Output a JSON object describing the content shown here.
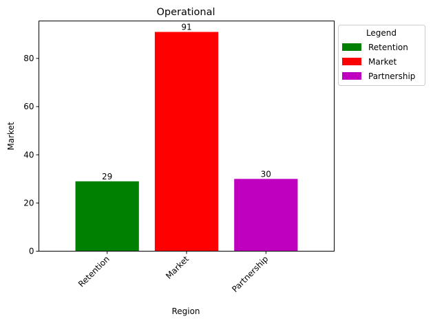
{
  "chart_data": {
    "type": "bar",
    "title": "Operational",
    "xlabel": "Region",
    "ylabel": "Market",
    "categories": [
      "Retention",
      "Market",
      "Partnership"
    ],
    "values": [
      29,
      91,
      30
    ],
    "colors": [
      "#008000",
      "#ff0000",
      "#bf00bf"
    ],
    "ylim": [
      0,
      95.55
    ],
    "yticks": [
      0,
      20,
      40,
      60,
      80
    ],
    "grid": false,
    "legend": {
      "title": "Legend",
      "placement": "outside-top-right",
      "entries": [
        "Retention",
        "Market",
        "Partnership"
      ]
    }
  }
}
